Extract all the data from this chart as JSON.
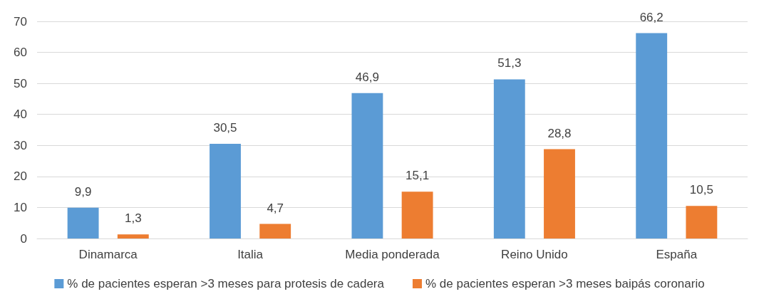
{
  "chart_data": {
    "type": "bar",
    "categories": [
      "Dinamarca",
      "Italia",
      "Media ponderada",
      "Reino Unido",
      "España"
    ],
    "series": [
      {
        "name": "% de pacientes esperan >3 meses para protesis de cadera",
        "color": "#5b9bd5",
        "values": [
          9.9,
          30.5,
          46.9,
          51.3,
          66.2
        ],
        "value_labels": [
          "9,9",
          "30,5",
          "46,9",
          "51,3",
          "66,2"
        ]
      },
      {
        "name": "% de pacientes esperan >3 meses baipás coronario",
        "color": "#ed7d31",
        "values": [
          1.3,
          4.7,
          15.1,
          28.8,
          10.5
        ],
        "value_labels": [
          "1,3",
          "4,7",
          "15,1",
          "28,8",
          "10,5"
        ]
      }
    ],
    "ylim": [
      0,
      70
    ],
    "yticks": [
      0,
      10,
      20,
      30,
      40,
      50,
      60,
      70
    ],
    "grid": "y",
    "legend": "bottom"
  }
}
